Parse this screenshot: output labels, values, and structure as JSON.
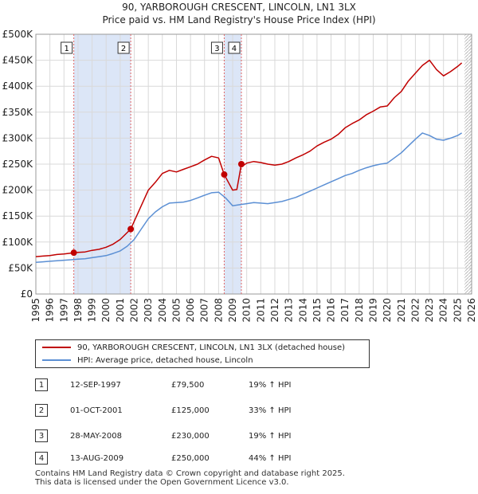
{
  "chart_data": {
    "type": "line",
    "title": "90, YARBOROUGH CRESCENT, LINCOLN, LN1 3LX",
    "subtitle": "Price paid vs. HM Land Registry's House Price Index (HPI)",
    "ylim": [
      0,
      500000
    ],
    "xlim": [
      1995,
      2026
    ],
    "y_ticks": [
      0,
      50000,
      100000,
      150000,
      200000,
      250000,
      300000,
      350000,
      400000,
      450000,
      500000
    ],
    "y_tick_labels": [
      "£0",
      "£50K",
      "£100K",
      "£150K",
      "£200K",
      "£250K",
      "£300K",
      "£350K",
      "£400K",
      "£450K",
      "£500K"
    ],
    "x_tick_labels": [
      "1995",
      "1996",
      "1997",
      "1998",
      "1999",
      "2000",
      "2001",
      "2002",
      "2003",
      "2004",
      "2005",
      "2006",
      "2007",
      "2008",
      "2009",
      "2010",
      "2011",
      "2012",
      "2013",
      "2014",
      "2015",
      "2016",
      "2017",
      "2018",
      "2019",
      "2020",
      "2021",
      "2022",
      "2023",
      "2024",
      "2025",
      "2026"
    ],
    "grid": true,
    "colors": {
      "property": "#c00000",
      "hpi": "#5b8fd4",
      "shade": "#dce6f7",
      "marker_line": "#e06666"
    },
    "shaded_ranges": [
      [
        1997.7,
        2001.75
      ],
      [
        2008.4,
        2009.62
      ]
    ],
    "hatched_from": 2025.5,
    "series": [
      {
        "name": "90, YARBOROUGH CRESCENT, LINCOLN, LN1 3LX (detached house)",
        "x": [
          1995,
          1995.5,
          1996,
          1996.5,
          1997,
          1997.7,
          1998,
          1998.5,
          1999,
          1999.5,
          2000,
          2000.5,
          2001,
          2001.75,
          2002,
          2002.5,
          2003,
          2003.5,
          2004,
          2004.5,
          2005,
          2005.5,
          2006,
          2006.5,
          2007,
          2007.5,
          2008,
          2008.4,
          2008.7,
          2009,
          2009.3,
          2009.62,
          2009.8,
          2010,
          2010.5,
          2011,
          2011.5,
          2012,
          2012.5,
          2013,
          2013.5,
          2014,
          2014.5,
          2015,
          2015.5,
          2016,
          2016.5,
          2017,
          2017.5,
          2018,
          2018.5,
          2019,
          2019.5,
          2020,
          2020.5,
          2021,
          2021.5,
          2022,
          2022.5,
          2023,
          2023.5,
          2024,
          2024.5,
          2025,
          2025.3
        ],
        "values": [
          72000,
          73000,
          74000,
          76000,
          77000,
          79500,
          80000,
          81000,
          84000,
          86000,
          90000,
          96000,
          105000,
          125000,
          140000,
          170000,
          200000,
          215000,
          232000,
          238000,
          235000,
          240000,
          245000,
          250000,
          258000,
          265000,
          262000,
          230000,
          215000,
          200000,
          201000,
          250000,
          248000,
          252000,
          255000,
          253000,
          250000,
          248000,
          250000,
          255000,
          262000,
          268000,
          275000,
          285000,
          292000,
          298000,
          307000,
          320000,
          328000,
          335000,
          345000,
          352000,
          360000,
          362000,
          378000,
          390000,
          410000,
          425000,
          440000,
          450000,
          432000,
          420000,
          428000,
          438000,
          445000
        ]
      },
      {
        "name": "HPI: Average price, detached house, Lincoln",
        "x": [
          1995,
          1995.5,
          1996,
          1996.5,
          1997,
          1997.5,
          1998,
          1998.5,
          1999,
          1999.5,
          2000,
          2000.5,
          2001,
          2001.5,
          2002,
          2002.5,
          2003,
          2003.5,
          2004,
          2004.5,
          2005,
          2005.5,
          2006,
          2006.5,
          2007,
          2007.5,
          2008,
          2008.5,
          2009,
          2009.5,
          2010,
          2010.5,
          2011,
          2011.5,
          2012,
          2012.5,
          2013,
          2013.5,
          2014,
          2014.5,
          2015,
          2015.5,
          2016,
          2016.5,
          2017,
          2017.5,
          2018,
          2018.5,
          2019,
          2019.5,
          2020,
          2020.5,
          2021,
          2021.5,
          2022,
          2022.5,
          2023,
          2023.5,
          2024,
          2024.5,
          2025,
          2025.3
        ],
        "values": [
          61000,
          62000,
          63000,
          64000,
          65000,
          66000,
          67000,
          68000,
          70000,
          72000,
          74000,
          78000,
          83000,
          92000,
          105000,
          125000,
          145000,
          158000,
          168000,
          175000,
          176000,
          177000,
          180000,
          185000,
          190000,
          195000,
          196000,
          185000,
          170000,
          172000,
          174000,
          176000,
          175000,
          174000,
          176000,
          178000,
          182000,
          186000,
          192000,
          198000,
          204000,
          210000,
          216000,
          222000,
          228000,
          232000,
          238000,
          243000,
          247000,
          250000,
          252000,
          262000,
          272000,
          285000,
          298000,
          310000,
          305000,
          298000,
          296000,
          300000,
          305000,
          310000
        ]
      }
    ],
    "sales": [
      {
        "label": "1",
        "x": 1997.7,
        "value": 79500
      },
      {
        "label": "2",
        "x": 2001.75,
        "value": 125000
      },
      {
        "label": "3",
        "x": 2008.4,
        "value": 230000
      },
      {
        "label": "4",
        "x": 2009.62,
        "value": 250000
      }
    ]
  },
  "legend": {
    "property": "90, YARBOROUGH CRESCENT, LINCOLN, LN1 3LX (detached house)",
    "hpi": "HPI: Average price, detached house, Lincoln"
  },
  "transactions": [
    {
      "num": "1",
      "date": "12-SEP-1997",
      "price": "£79,500",
      "hpi": "19% ↑ HPI"
    },
    {
      "num": "2",
      "date": "01-OCT-2001",
      "price": "£125,000",
      "hpi": "33% ↑ HPI"
    },
    {
      "num": "3",
      "date": "28-MAY-2008",
      "price": "£230,000",
      "hpi": "19% ↑ HPI"
    },
    {
      "num": "4",
      "date": "13-AUG-2009",
      "price": "£250,000",
      "hpi": "44% ↑ HPI"
    }
  ],
  "footer": {
    "line1": "Contains HM Land Registry data © Crown copyright and database right 2025.",
    "line2": "This data is licensed under the Open Government Licence v3.0."
  }
}
